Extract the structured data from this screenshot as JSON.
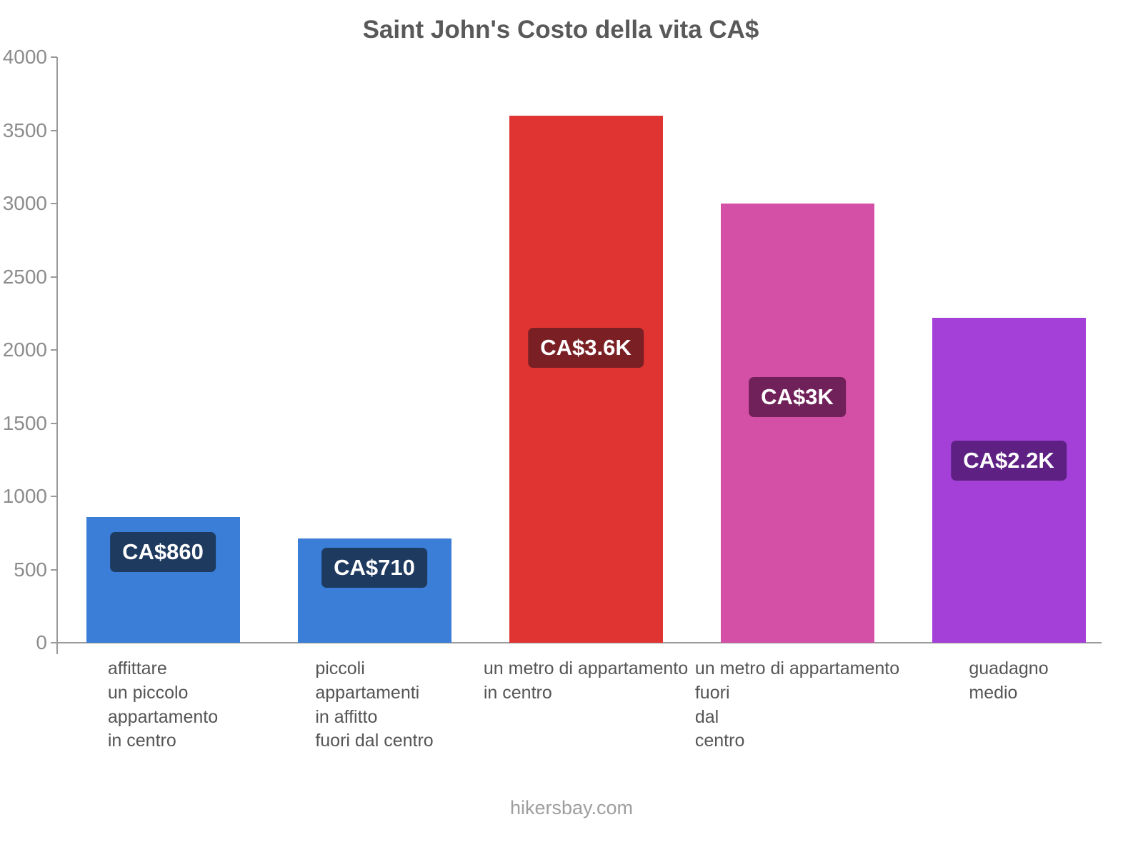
{
  "title": "Saint John's Costo della vita CA$",
  "footer": "hikersbay.com",
  "chart_data": {
    "type": "bar",
    "title": "Saint John's Costo della vita CA$",
    "currency": "CA$",
    "categories": [
      "affittare un piccolo appartamento in centro",
      "piccoli appartamenti in affitto fuori dal centro",
      "un metro di appartamento in centro",
      "un metro di appartamento fuori dal centro",
      "guadagno medio"
    ],
    "category_lines": [
      [
        "affittare",
        "un piccolo",
        "appartamento",
        "in centro"
      ],
      [
        "piccoli",
        "appartamenti",
        "in affitto",
        "fuori dal centro"
      ],
      [
        "un metro di appartamento",
        "in centro"
      ],
      [
        "un metro di appartamento",
        "fuori",
        "dal",
        "centro"
      ],
      [
        "guadagno",
        "medio"
      ]
    ],
    "values": [
      860,
      710,
      3600,
      3000,
      2220
    ],
    "value_labels": [
      "CA$860",
      "CA$710",
      "CA$3.6K",
      "CA$3K",
      "CA$2.2K"
    ],
    "bar_colors": [
      "#3b7ed8",
      "#3b7ed8",
      "#e03433",
      "#d44fa6",
      "#a440d8"
    ],
    "label_bg_colors": [
      "#1e3a5f",
      "#1e3a5f",
      "#7a2025",
      "#702159",
      "#5e2183"
    ],
    "ylim": [
      0,
      4000
    ],
    "yticks": [
      0,
      500,
      1000,
      1500,
      2000,
      2500,
      3000,
      3500,
      4000
    ],
    "xlabel": "",
    "ylabel": "",
    "grid": false,
    "legend": false
  }
}
